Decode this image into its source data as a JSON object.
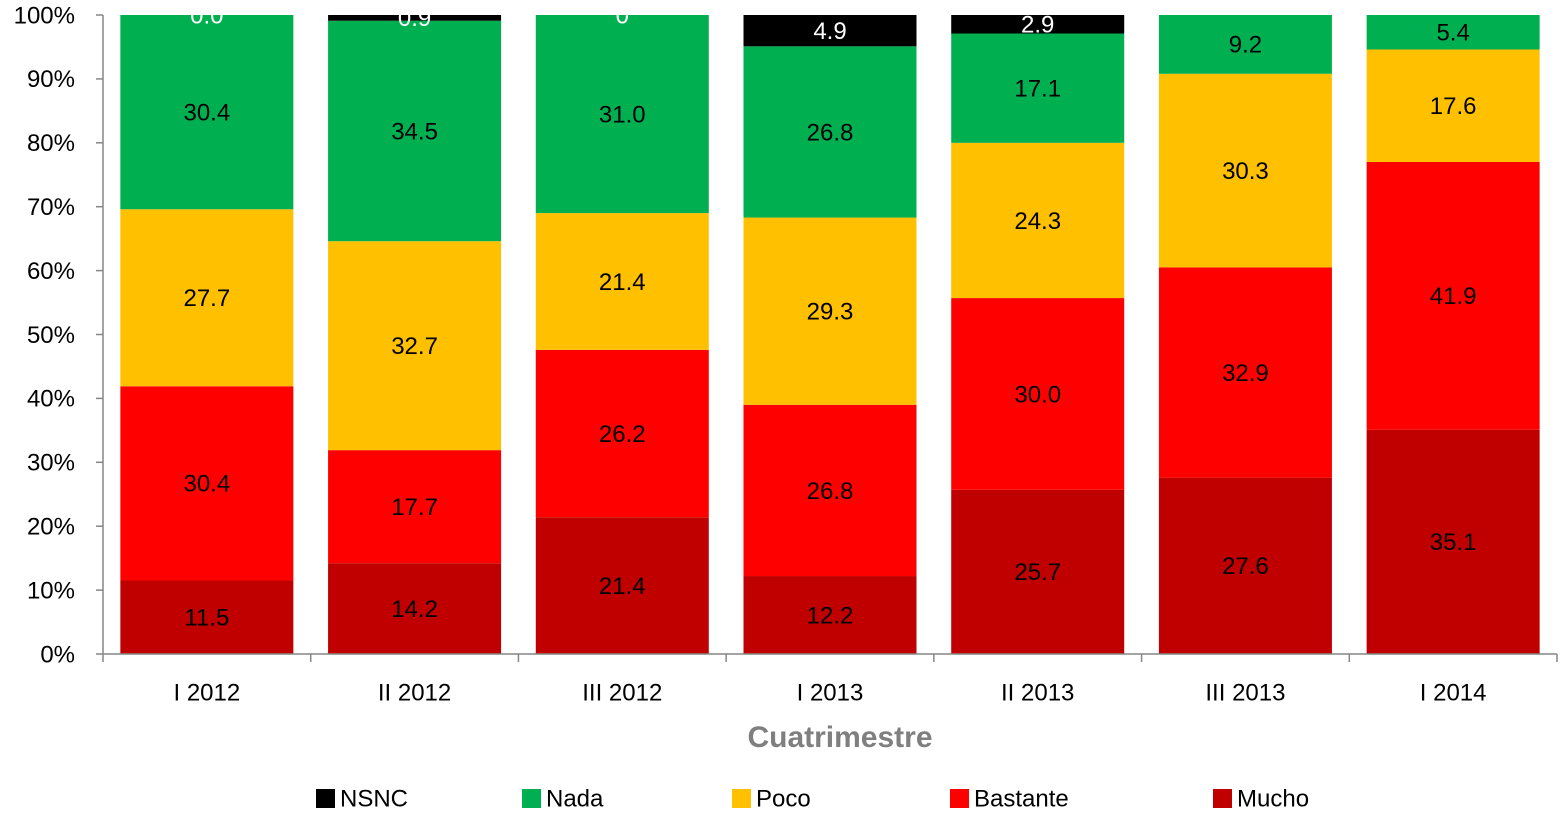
{
  "chart_data": {
    "type": "stacked_bar",
    "x_label": "Cuatrimestre",
    "categories": [
      "I 2012",
      "II 2012",
      "III 2012",
      "I 2013",
      "II 2013",
      "III 2013",
      "I 2014"
    ],
    "series": [
      {
        "name": "Mucho",
        "color": "#c00000",
        "values": [
          11.5,
          14.2,
          21.4,
          12.2,
          25.7,
          27.6,
          35.1
        ]
      },
      {
        "name": "Bastante",
        "color": "#ff0000",
        "values": [
          30.4,
          17.7,
          26.2,
          26.8,
          30,
          32.9,
          41.9
        ],
        "value_labels": [
          "30.4",
          "17.7",
          "26.2",
          "26.8",
          "30.0",
          "32.9",
          "41.9"
        ]
      },
      {
        "name": "Poco",
        "color": "#ffc000",
        "values": [
          27.7,
          32.7,
          21.4,
          29.3,
          24.3,
          30.3,
          17.6
        ]
      },
      {
        "name": "Nada",
        "color": "#00b050",
        "values": [
          30.4,
          34.5,
          31,
          26.8,
          17.1,
          9.2,
          5.4
        ],
        "value_labels": [
          "30.4",
          "34.5",
          "31.0",
          "26.8",
          "17.1",
          "9.2",
          "5.4"
        ]
      },
      {
        "name": "NSNC",
        "color": "#000000",
        "label_color": "#ffffff",
        "values": [
          0,
          0.9,
          0,
          4.9,
          2.9,
          null,
          null
        ],
        "value_labels": [
          "0.0",
          "0.9",
          "0",
          "4.9",
          "2.9",
          null,
          null
        ]
      }
    ],
    "legend_order": [
      4,
      3,
      2,
      1,
      0
    ],
    "ylim": [
      0,
      100
    ],
    "yticks": [
      {
        "value": 0,
        "label": "0%"
      },
      {
        "value": 10,
        "label": "10%"
      },
      {
        "value": 20,
        "label": "20%"
      },
      {
        "value": 30,
        "label": "30%"
      },
      {
        "value": 40,
        "label": "40%"
      },
      {
        "value": 50,
        "label": "50%"
      },
      {
        "value": 60,
        "label": "60%"
      },
      {
        "value": 70,
        "label": "70%"
      },
      {
        "value": 80,
        "label": "80%"
      },
      {
        "value": 90,
        "label": "90%"
      },
      {
        "value": 100,
        "label": "100%"
      }
    ],
    "grid": false,
    "legend": "bottom"
  }
}
